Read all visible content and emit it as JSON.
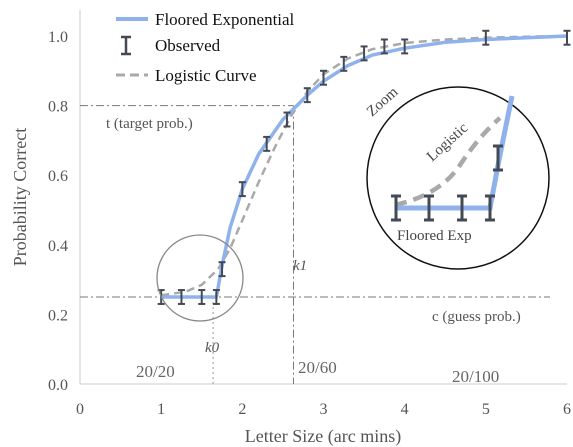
{
  "chart_data": {
    "type": "line",
    "xlabel": "Letter Size (arc mins)",
    "ylabel": "Probability Correct",
    "xlim": [
      0,
      6
    ],
    "ylim": [
      0,
      1.05
    ],
    "xticks": [
      0,
      1,
      2,
      3,
      4,
      5,
      6
    ],
    "yticks": [
      0.0,
      0.2,
      0.4,
      0.6,
      0.8,
      1.0
    ],
    "x_tick_labels": [
      "0",
      "1",
      "2",
      "3",
      "4",
      "5",
      "6"
    ],
    "y_tick_labels": [
      "0.0",
      "0.2",
      "0.4",
      "0.6",
      "0.8",
      "1.0"
    ],
    "legend": {
      "position": "top-left",
      "entries": [
        {
          "label": "Floored Exponential",
          "color": "#8fb1ec",
          "style": "solid"
        },
        {
          "label": "Observed",
          "color": "#444a55",
          "style": "errorbar"
        },
        {
          "label": "Logistic Curve",
          "color": "#a9a9a9",
          "style": "dashed"
        }
      ]
    },
    "series": [
      {
        "name": "Floored Exponential",
        "color": "#8fb1ec",
        "x": [
          1.0,
          1.68,
          1.75,
          1.85,
          2.0,
          2.2,
          2.5,
          2.8,
          3.0,
          3.3,
          3.6,
          4.0,
          4.5,
          5.0,
          5.5,
          6.0
        ],
        "y": [
          0.25,
          0.25,
          0.34,
          0.45,
          0.56,
          0.66,
          0.76,
          0.83,
          0.87,
          0.915,
          0.945,
          0.965,
          0.982,
          0.99,
          0.995,
          1.0
        ]
      },
      {
        "name": "Logistic Curve",
        "color": "#a9a9a9",
        "x": [
          1.0,
          1.3,
          1.5,
          1.7,
          1.85,
          2.0,
          2.2,
          2.4,
          2.6,
          2.8,
          3.0,
          3.3,
          3.6,
          4.0,
          4.5,
          5.0,
          5.5,
          6.0
        ],
        "y": [
          0.255,
          0.265,
          0.285,
          0.33,
          0.39,
          0.47,
          0.58,
          0.68,
          0.77,
          0.84,
          0.89,
          0.935,
          0.962,
          0.98,
          0.99,
          0.995,
          0.998,
          1.0
        ]
      },
      {
        "name": "Observed",
        "color": "#444a55",
        "x": [
          1.0,
          1.25,
          1.5,
          1.68,
          1.75,
          2.0,
          2.3,
          2.55,
          2.8,
          3.0,
          3.25,
          3.5,
          3.75,
          4.0,
          5.0,
          6.0
        ],
        "y": [
          0.25,
          0.25,
          0.25,
          0.25,
          0.33,
          0.56,
          0.69,
          0.76,
          0.83,
          0.88,
          0.92,
          0.95,
          0.97,
          0.97,
          0.995,
          0.995
        ],
        "err": [
          0.02,
          0.02,
          0.02,
          0.02,
          0.02,
          0.02,
          0.02,
          0.02,
          0.02,
          0.02,
          0.02,
          0.02,
          0.02,
          0.02,
          0.02,
          0.02
        ]
      }
    ],
    "reference_lines": {
      "guess_prob": {
        "y": 0.25,
        "label": "c (guess prob.)"
      },
      "target_prob": {
        "y": 0.8,
        "label": "t (target prob.)"
      },
      "k0": {
        "x": 1.64,
        "label": "k0"
      },
      "k1": {
        "x": 2.63,
        "label": "k1"
      }
    },
    "acuity_labels": [
      {
        "x": 1.0,
        "label": "20/20"
      },
      {
        "x": 3.0,
        "label": "20/60"
      },
      {
        "x": 5.0,
        "label": "20/100"
      }
    ],
    "inset": {
      "zoom_label": "Zoom",
      "logistic_label": "Logistic",
      "floored_label": "Floored Exp"
    },
    "grid": false
  }
}
